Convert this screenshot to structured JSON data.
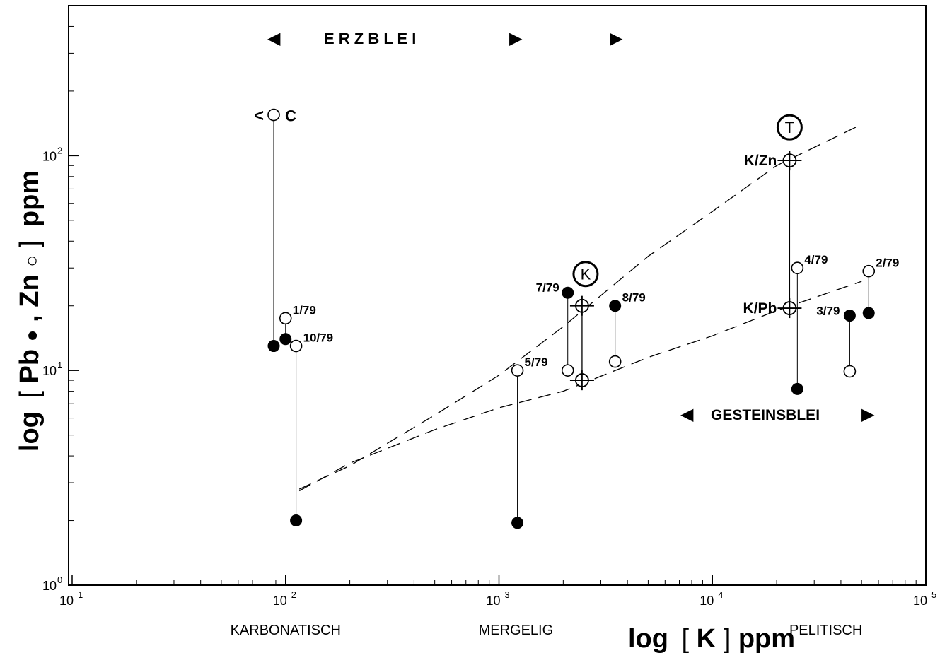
{
  "chart_data": {
    "type": "scatter",
    "x_scale": "log",
    "y_scale": "log",
    "xlim": [
      10,
      100000
    ],
    "ylim": [
      1,
      500
    ],
    "grid": false,
    "legend": "none",
    "xlabel_parts": [
      "log",
      "[",
      "K",
      "]",
      "ppm"
    ],
    "ylabel_parts": [
      "log",
      "[",
      "Pb",
      "●",
      ",",
      "Zn",
      "○",
      "]",
      "ppm"
    ],
    "x_ticks": [
      {
        "value": 10,
        "base": "10",
        "exp": "1"
      },
      {
        "value": 100,
        "base": "10",
        "exp": "2"
      },
      {
        "value": 1000,
        "base": "10",
        "exp": "3"
      },
      {
        "value": 10000,
        "base": "10",
        "exp": "4"
      },
      {
        "value": 100000,
        "base": "10",
        "exp": "5"
      }
    ],
    "y_ticks": [
      {
        "value": 1,
        "base": "10",
        "exp": "0"
      },
      {
        "value": 10,
        "base": "10",
        "exp": "1"
      },
      {
        "value": 100,
        "base": "10",
        "exp": "2"
      }
    ],
    "x_minor_ticks": [
      20,
      30,
      40,
      50,
      60,
      70,
      80,
      90,
      200,
      300,
      400,
      500,
      600,
      700,
      800,
      900,
      2000,
      3000,
      4000,
      5000,
      6000,
      7000,
      8000,
      9000,
      20000,
      30000,
      40000,
      50000,
      60000,
      70000,
      80000,
      90000
    ],
    "y_minor_ticks": [
      2,
      3,
      4,
      5,
      6,
      7,
      8,
      9,
      20,
      30,
      40,
      50,
      60,
      70,
      80,
      90,
      200,
      300,
      400
    ],
    "category_labels": [
      {
        "text": "KARBONATISCH",
        "x": 100
      },
      {
        "text": "MERGELIG",
        "x": 1200
      },
      {
        "text": "PELITISCH",
        "x": 34000
      }
    ],
    "samples": [
      {
        "label": "C",
        "label_prefix": "<",
        "k": 88,
        "zn": 155,
        "pb": 13
      },
      {
        "label": "1/79",
        "k": 100,
        "zn": 17.5,
        "pb": 14
      },
      {
        "label": "10/79",
        "k": 112,
        "zn": 13,
        "pb": 2
      },
      {
        "label": "5/79",
        "k": 1220,
        "zn": 10,
        "pb": 1.95
      },
      {
        "label": "7/79",
        "k": 2100,
        "zn": 10,
        "pb": 23
      },
      {
        "label": "8/79",
        "k": 3500,
        "zn": 11,
        "pb": 20
      },
      {
        "label": "4/79",
        "k": 25000,
        "zn": 30,
        "pb": 8.2
      },
      {
        "label": "3/79",
        "k": 44000,
        "zn": 9.9,
        "pb": 18
      },
      {
        "label": "2/79",
        "k": 54000,
        "zn": 29,
        "pb": 18.5
      }
    ],
    "averages": [
      {
        "name": "K",
        "k": 2450,
        "values": [
          20,
          9
        ],
        "labels": []
      },
      {
        "name": "T",
        "k": 23000,
        "values": [
          95,
          19.5
        ],
        "labels": [
          "K/Zn",
          "K/Pb"
        ]
      }
    ],
    "curves": [
      {
        "name": "K/Zn",
        "points": [
          [
            116,
            2.8
          ],
          [
            200,
            3.6
          ],
          [
            500,
            6.2
          ],
          [
            1000,
            9.5
          ],
          [
            2000,
            16
          ],
          [
            5000,
            34
          ],
          [
            10000,
            55
          ],
          [
            20000,
            90
          ],
          [
            50000,
            140
          ]
        ]
      },
      {
        "name": "K/Pb",
        "points": [
          [
            116,
            2.75
          ],
          [
            200,
            3.7
          ],
          [
            500,
            5.3
          ],
          [
            1000,
            6.7
          ],
          [
            2000,
            8
          ],
          [
            5000,
            11.5
          ],
          [
            10000,
            14.5
          ],
          [
            20000,
            19
          ],
          [
            50000,
            26
          ]
        ]
      }
    ],
    "annotations": {
      "erzblei": "E R Z B L E I",
      "gesteinsblei": "GESTEINSBLEI",
      "marker_left": "◀",
      "marker_right": "▶"
    }
  }
}
